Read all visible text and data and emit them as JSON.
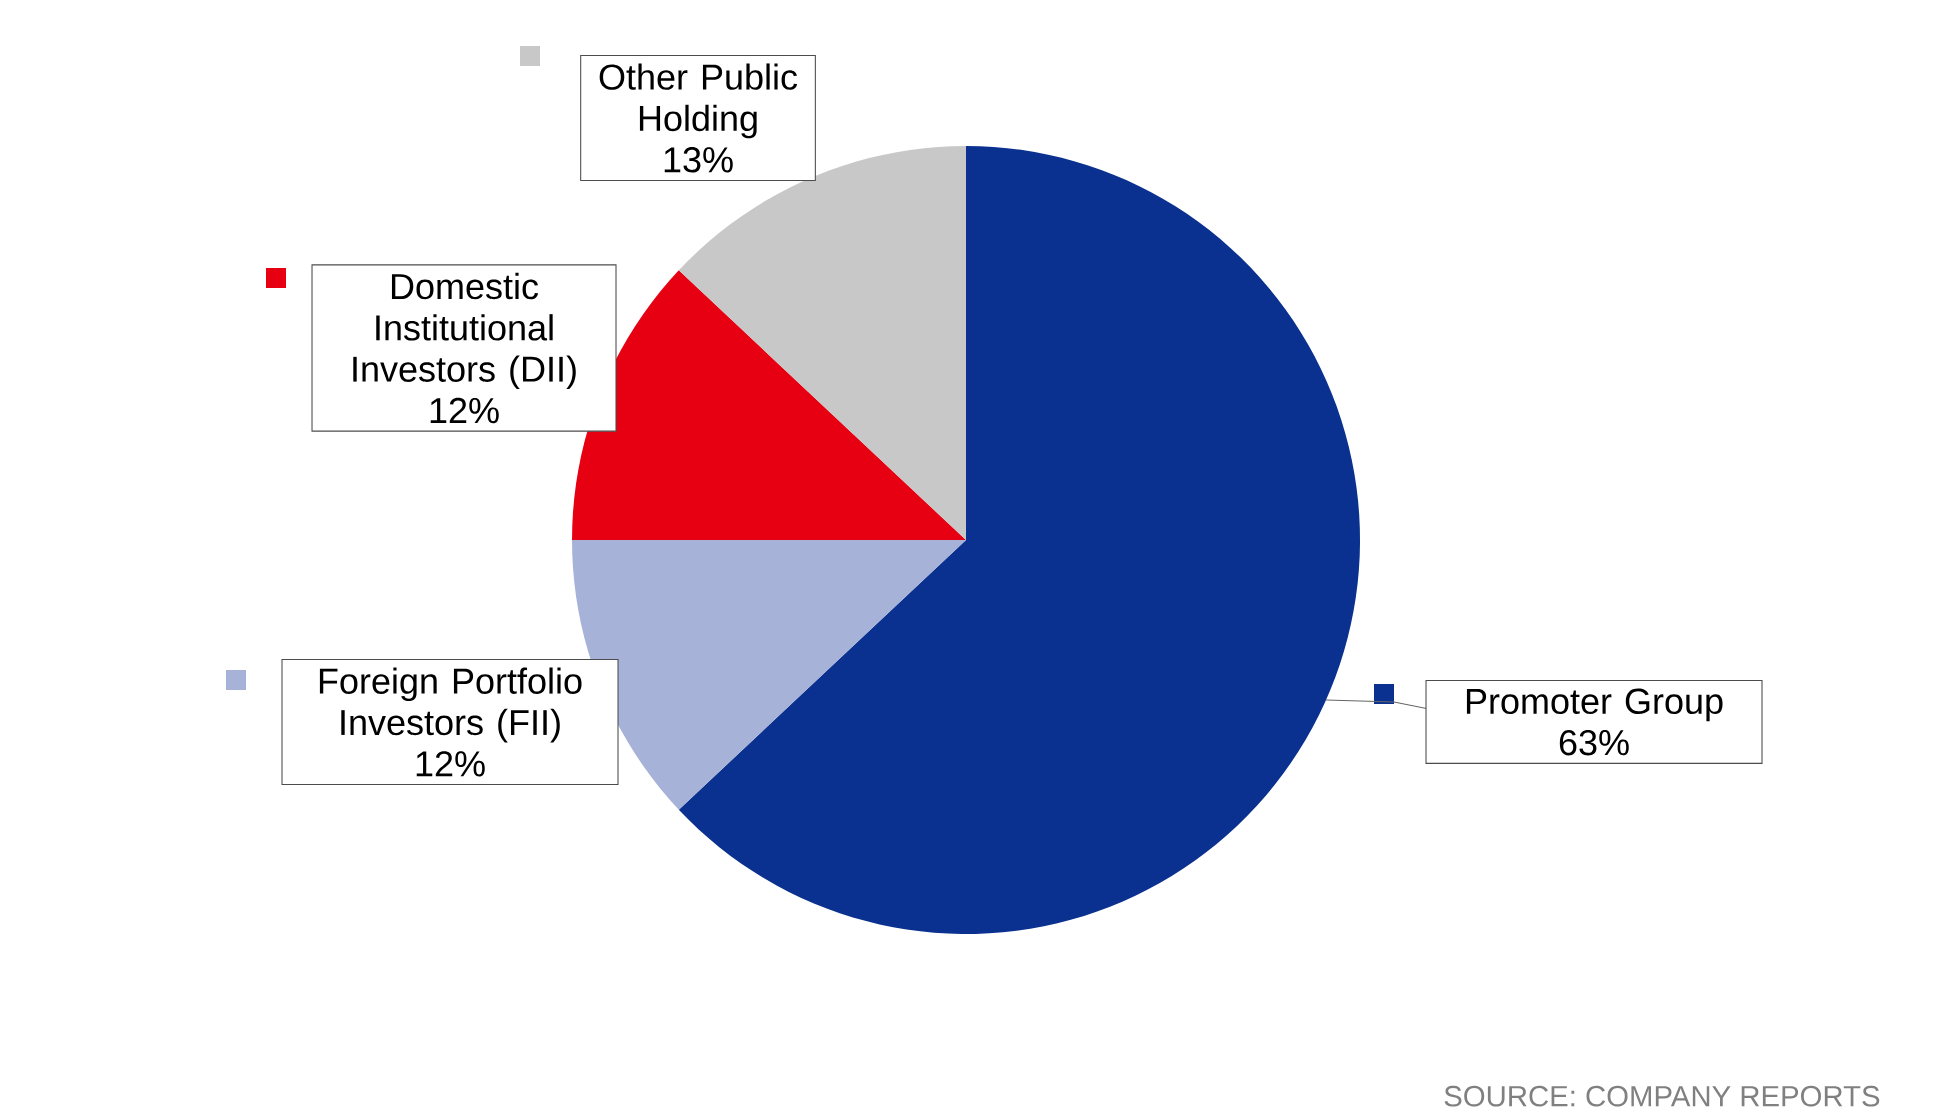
{
  "chart_data": {
    "type": "pie",
    "categories": [
      "Promoter Group",
      "Foreign Portfolio Investors (FII)",
      "Domestic Institutional Investors (DII)",
      "Other Public Holding"
    ],
    "values": [
      63,
      12,
      12,
      13
    ],
    "value_labels": [
      "63%",
      "12%",
      "12%",
      "13%"
    ],
    "colors": [
      "#0a318f",
      "#a7b2d9",
      "#e60012",
      "#c8c8c8"
    ],
    "legend": "left",
    "annotations": [
      "SOURCE: COMPANY REPORTS"
    ]
  }
}
